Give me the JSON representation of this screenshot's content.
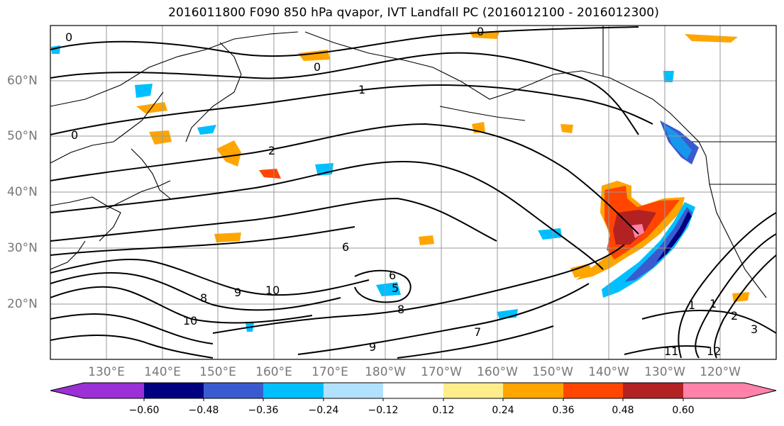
{
  "title": "2016011800 F090 850 hPa qvapor, IVT Landfall PC (2016012100 - 2016012300)",
  "latitude_labels": [
    "60°N",
    "50°N",
    "40°N",
    "30°N",
    "20°N"
  ],
  "longitude_labels": [
    "130°E",
    "140°E",
    "150°E",
    "160°E",
    "170°E",
    "180°W",
    "170°W",
    "160°W",
    "150°W",
    "140°W",
    "130°W",
    "120°W"
  ],
  "colorbar": {
    "ticks": [
      "−0.60",
      "−0.48",
      "−0.36",
      "−0.24",
      "−0.12",
      "0.12",
      "0.24",
      "0.36",
      "0.48",
      "0.60"
    ],
    "colors": [
      "#9b30d6",
      "#000080",
      "#3a5bd0",
      "#00bfff",
      "#b0e2ff",
      "#ffffff",
      "#ffec8b",
      "#ffa500",
      "#ff4500",
      "#b22222",
      "#ff82ab"
    ]
  },
  "contour_labels": [
    "0",
    "0",
    "0",
    "0",
    "1",
    "1",
    "2",
    "6",
    "8",
    "9",
    "10",
    "10",
    "11",
    "12",
    "1",
    "2",
    "3",
    "5",
    "6",
    "7",
    "8",
    "9"
  ]
}
